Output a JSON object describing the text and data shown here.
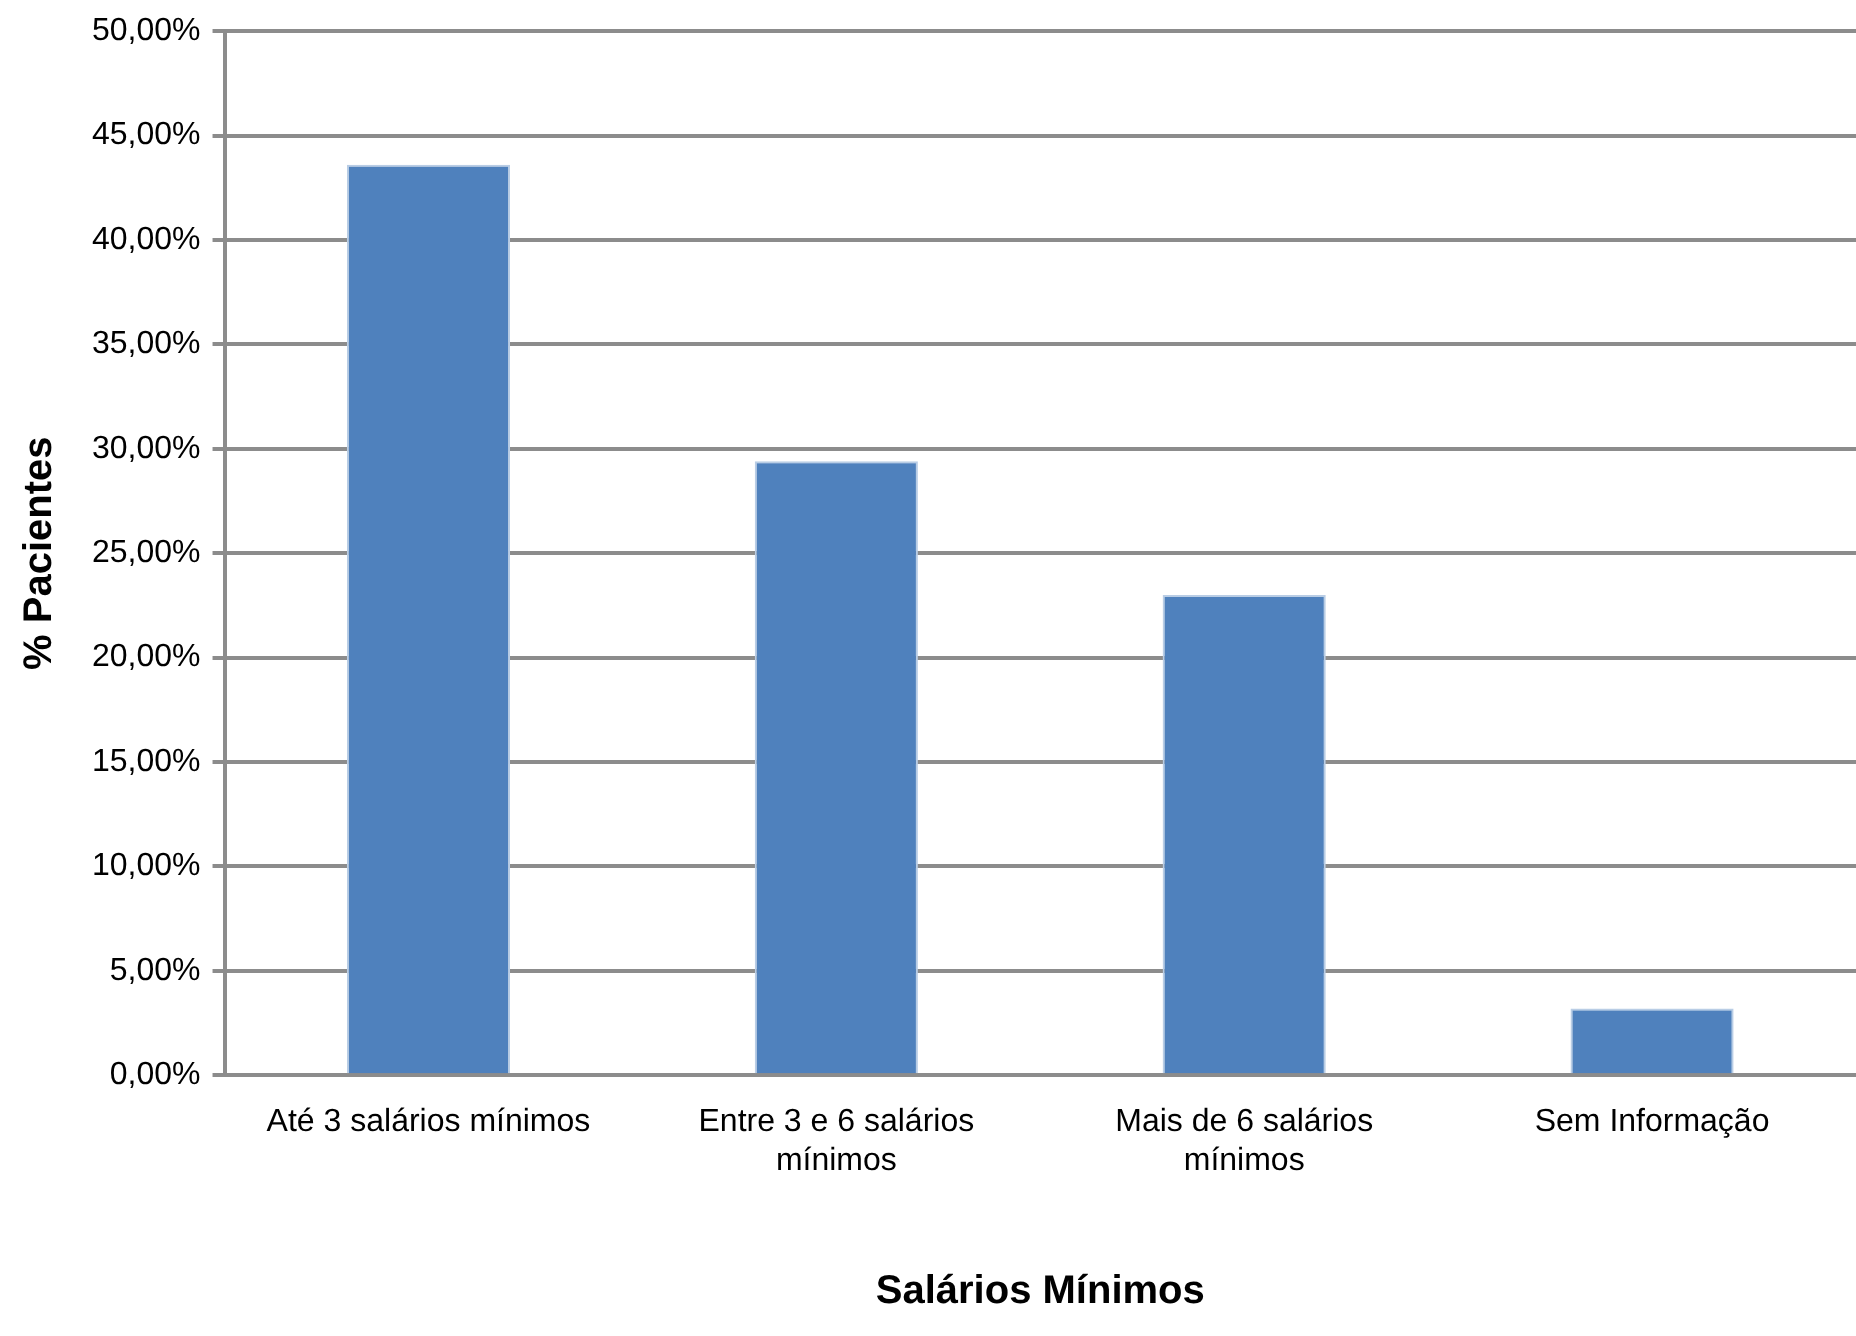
{
  "chart_data": {
    "type": "bar",
    "xlabel": "Salários Mínimos",
    "ylabel": "% Pacientes",
    "categories": [
      "Até 3 salários mínimos",
      "Entre 3 e 6 salários mínimos",
      "Mais de 6 salários mínimos",
      "Sem Informação"
    ],
    "values": [
      43.6,
      29.4,
      23.0,
      3.2
    ],
    "color": "#4f81bd",
    "ylim": [
      0,
      50
    ],
    "yticks": [
      {
        "value": 0,
        "label": "0,00%"
      },
      {
        "value": 5,
        "label": "5,00%"
      },
      {
        "value": 10,
        "label": "10,00%"
      },
      {
        "value": 15,
        "label": "15,00%"
      },
      {
        "value": 20,
        "label": "20,00%"
      },
      {
        "value": 25,
        "label": "25,00%"
      },
      {
        "value": 30,
        "label": "30,00%"
      },
      {
        "value": 35,
        "label": "35,00%"
      },
      {
        "value": 40,
        "label": "40,00%"
      },
      {
        "value": 45,
        "label": "45,00%"
      },
      {
        "value": 50,
        "label": "50,00%"
      }
    ],
    "grid": "y",
    "legend": false
  }
}
